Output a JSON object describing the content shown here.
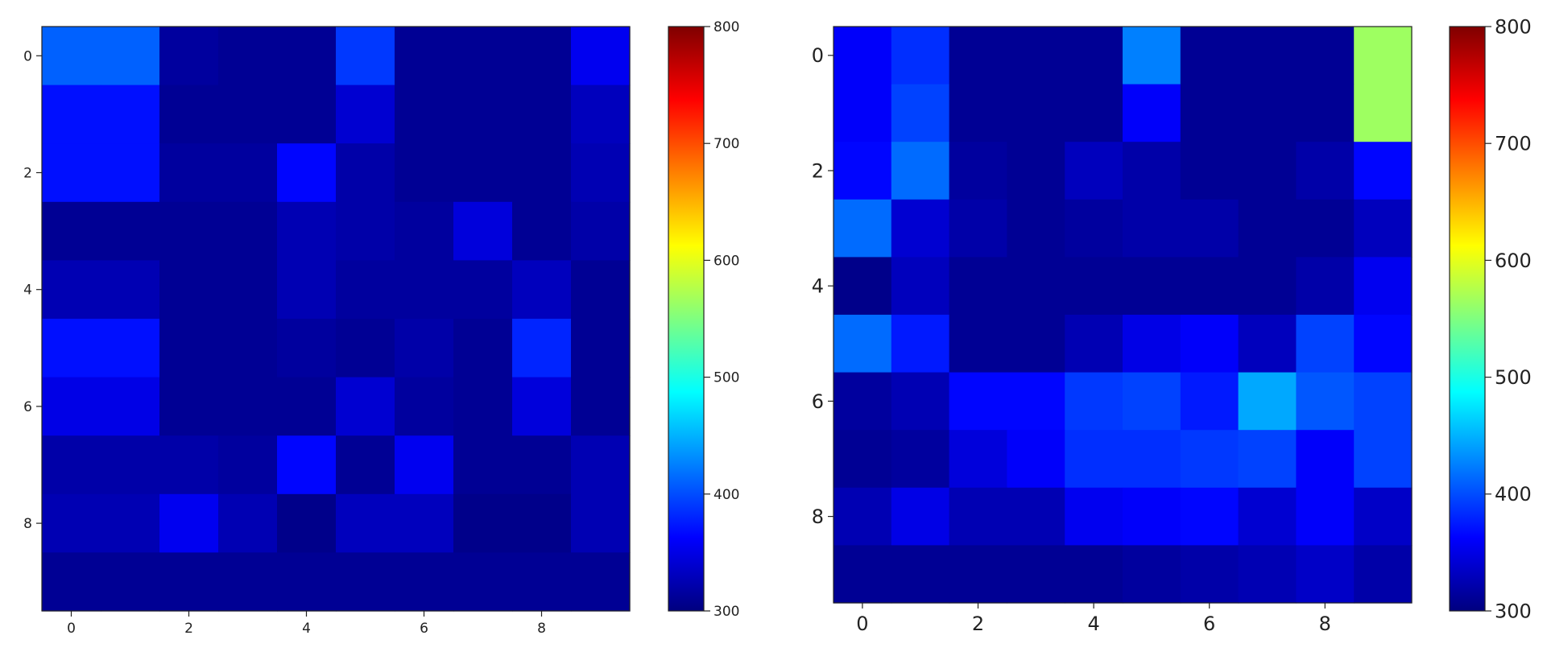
{
  "chart_data": [
    {
      "type": "heatmap",
      "title": "",
      "xlabel": "",
      "ylabel": "",
      "x_ticks": [
        "0",
        "2",
        "4",
        "6",
        "8"
      ],
      "y_ticks": [
        "0",
        "2",
        "4",
        "6",
        "8"
      ],
      "colormap": "jet",
      "vmin": 300,
      "vmax": 800,
      "colorbar_ticks": [
        "300",
        "400",
        "500",
        "600",
        "700",
        "800"
      ],
      "grid": false,
      "values": [
        [
          410,
          410,
          315,
          310,
          310,
          390,
          310,
          310,
          310,
          355
        ],
        [
          370,
          370,
          310,
          310,
          310,
          340,
          310,
          310,
          310,
          330
        ],
        [
          370,
          370,
          315,
          315,
          365,
          320,
          310,
          310,
          310,
          325
        ],
        [
          310,
          310,
          310,
          310,
          325,
          320,
          315,
          345,
          310,
          320
        ],
        [
          325,
          325,
          310,
          310,
          325,
          315,
          315,
          315,
          330,
          310
        ],
        [
          370,
          370,
          310,
          310,
          315,
          310,
          320,
          310,
          380,
          310
        ],
        [
          350,
          350,
          310,
          310,
          310,
          340,
          315,
          310,
          345,
          310
        ],
        [
          320,
          320,
          320,
          315,
          365,
          310,
          355,
          310,
          310,
          325
        ],
        [
          325,
          325,
          355,
          325,
          305,
          330,
          330,
          305,
          305,
          325
        ],
        [
          310,
          310,
          310,
          310,
          310,
          310,
          310,
          310,
          310,
          310
        ]
      ]
    },
    {
      "type": "heatmap",
      "title": "",
      "xlabel": "",
      "ylabel": "",
      "x_ticks": [
        "0",
        "2",
        "4",
        "6",
        "8"
      ],
      "y_ticks": [
        "0",
        "2",
        "4",
        "6",
        "8"
      ],
      "colormap": "jet",
      "vmin": 300,
      "vmax": 800,
      "colorbar_ticks": [
        "300",
        "400",
        "500",
        "600",
        "700",
        "800"
      ],
      "grid": false,
      "values": [
        [
          360,
          385,
          310,
          310,
          310,
          425,
          310,
          310,
          310,
          565
        ],
        [
          360,
          395,
          310,
          310,
          310,
          360,
          310,
          310,
          310,
          565
        ],
        [
          365,
          415,
          315,
          310,
          330,
          320,
          310,
          310,
          320,
          365
        ],
        [
          415,
          340,
          320,
          310,
          315,
          320,
          320,
          310,
          310,
          330
        ],
        [
          305,
          330,
          310,
          310,
          310,
          310,
          310,
          310,
          320,
          355
        ],
        [
          415,
          375,
          310,
          310,
          325,
          350,
          360,
          330,
          395,
          365
        ],
        [
          315,
          325,
          365,
          365,
          390,
          395,
          375,
          445,
          405,
          395
        ],
        [
          310,
          315,
          345,
          360,
          385,
          385,
          390,
          395,
          360,
          395
        ],
        [
          325,
          350,
          325,
          325,
          355,
          360,
          365,
          340,
          360,
          335
        ],
        [
          310,
          310,
          310,
          310,
          310,
          315,
          320,
          325,
          335,
          320
        ]
      ]
    }
  ]
}
